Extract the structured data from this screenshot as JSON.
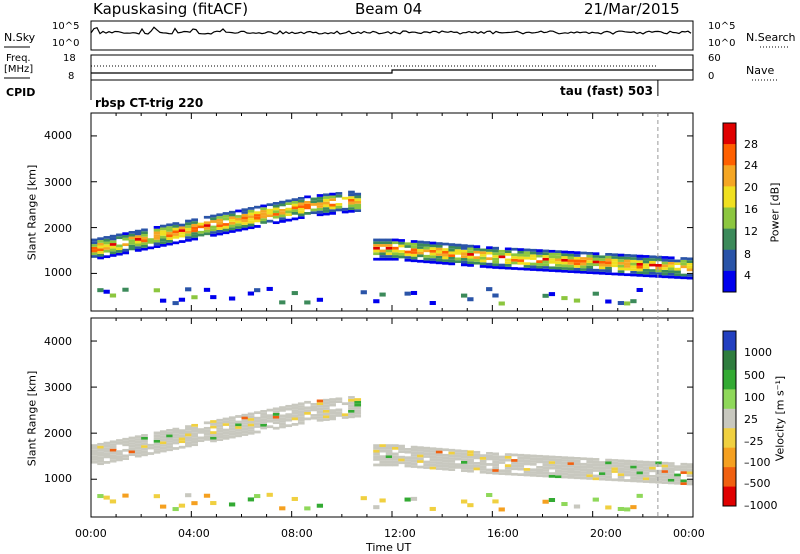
{
  "header": {
    "station": "Kapuskasing (fitACF)",
    "beam": "Beam 04",
    "date": "21/Mar/2015"
  },
  "top_panels": {
    "nsky_label": "N.Sky",
    "nsearch_label": "N.Search",
    "noise_ticks": [
      "10^5",
      "10^0"
    ],
    "freq_label_1": "Freq.",
    "freq_label_2": "[MHz]",
    "freq_ticks": [
      "18",
      "8"
    ],
    "nave_label": "Nave",
    "nave_ticks": [
      "60",
      "0"
    ],
    "cpid_label": "CPID",
    "cpid_1": "rbsp CT-trig 220",
    "cpid_2": "tau (fast) 503"
  },
  "colors": {
    "power": [
      "#0000ee",
      "#2a54a8",
      "#3c8a5a",
      "#8cc63f",
      "#f0e020",
      "#f5a623",
      "#ff6000",
      "#e00000"
    ],
    "velocity": [
      "#2340c0",
      "#2f7d3e",
      "#33aa33",
      "#8fd85a",
      "#c8c8bf",
      "#f0d040",
      "#f5a020",
      "#f06010",
      "#e00000"
    ]
  },
  "chart_data": [
    {
      "type": "heatmap",
      "name": "power",
      "ylabel": "Slant Range [km]",
      "xlabel": "",
      "ylim": [
        180,
        4500
      ],
      "yticks": [
        1000,
        2000,
        3000,
        4000
      ],
      "xlim": [
        0,
        24
      ],
      "colorbar": {
        "label": "Power [dB]",
        "ticks": [
          "28",
          "24",
          "20",
          "16",
          "12",
          "8",
          "4"
        ],
        "levels": [
          0,
          4,
          8,
          12,
          16,
          20,
          24,
          28,
          32
        ]
      }
    },
    {
      "type": "heatmap",
      "name": "velocity",
      "ylabel": "Slant Range [km]",
      "xlabel": "Time UT",
      "ylim": [
        180,
        4500
      ],
      "yticks": [
        1000,
        2000,
        3000,
        4000
      ],
      "xlim": [
        0,
        24
      ],
      "xtick_labels": [
        "00:00",
        "04:00",
        "08:00",
        "12:00",
        "16:00",
        "20:00",
        "00:00"
      ],
      "colorbar": {
        "label": "Velocity [m s⁻¹]",
        "ticks": [
          "1000",
          "500",
          "100",
          "25",
          "–25",
          "–100",
          "–500",
          "–1000"
        ]
      }
    }
  ]
}
